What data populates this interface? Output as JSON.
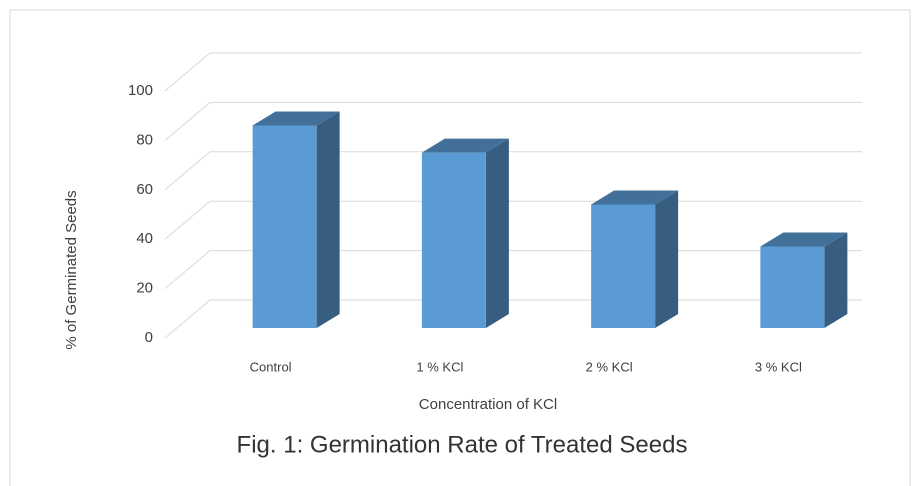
{
  "chart_data": {
    "type": "bar3d",
    "title": "Fig. 1: Germination Rate of Treated Seeds",
    "x_label": "Concentration of KCl",
    "y_label": "% of Germinated Seeds",
    "categories": [
      "Control",
      "1 % KCl",
      "2 % KCl",
      "3 % KCl"
    ],
    "values": [
      82,
      71,
      50,
      33
    ],
    "color": "#5b9bd5",
    "ylim": [
      0,
      100
    ],
    "yticks": [
      0,
      20,
      40,
      60,
      80,
      100
    ],
    "grid": true
  }
}
